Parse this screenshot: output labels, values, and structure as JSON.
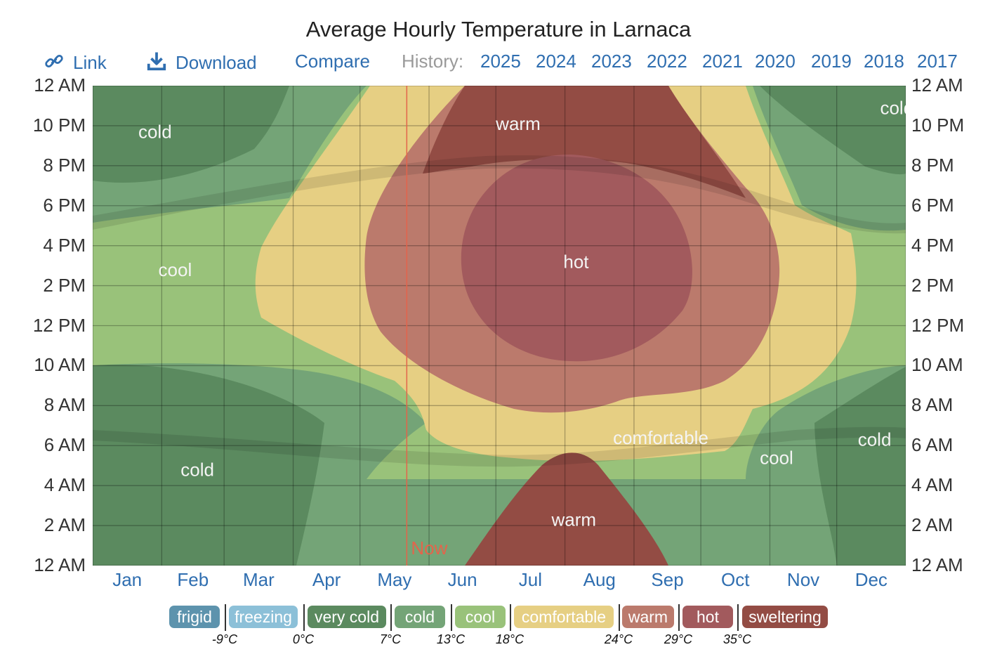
{
  "title": "Average Hourly Temperature in Larnaca",
  "toolbar": {
    "link_label": "Link",
    "download_label": "Download",
    "compare_label": "Compare",
    "history_label": "History:",
    "years": [
      "2025",
      "2024",
      "2023",
      "2022",
      "2021",
      "2020",
      "2019",
      "2018",
      "2017"
    ]
  },
  "colors": {
    "frigid": "#5d93ad",
    "freezing": "#8cc0d8",
    "very_cold": "#5b8a5f",
    "cold": "#74a477",
    "cool": "#99c27a",
    "comfortable": "#e6cf83",
    "warm": "#bb7a6c",
    "hot": "#a25a5d",
    "sweltering": "#934c44",
    "now_marker": "#e4644b"
  },
  "now_label": "Now",
  "chart_data": {
    "type": "heatmap",
    "title": "Average Hourly Temperature in Larnaca",
    "x_axis": {
      "categories": [
        "Jan",
        "Feb",
        "Mar",
        "Apr",
        "May",
        "Jun",
        "Jul",
        "Aug",
        "Sep",
        "Oct",
        "Nov",
        "Dec"
      ],
      "range_days": [
        0,
        365
      ]
    },
    "y_axis": {
      "tick_labels": [
        "12 AM",
        "10 PM",
        "8 PM",
        "6 PM",
        "4 PM",
        "2 PM",
        "12 PM",
        "10 AM",
        "8 AM",
        "6 AM",
        "4 AM",
        "2 AM",
        "12 AM"
      ],
      "range_hours": [
        0,
        24
      ]
    },
    "grid": true,
    "now_marker": {
      "label": "Now",
      "day_of_year": 141
    },
    "bands": [
      {
        "name": "frigid",
        "upper_c": -9
      },
      {
        "name": "freezing",
        "lower_c": -9,
        "upper_c": 0
      },
      {
        "name": "very cold",
        "lower_c": 0,
        "upper_c": 7
      },
      {
        "name": "cold",
        "lower_c": 7,
        "upper_c": 13
      },
      {
        "name": "cool",
        "lower_c": 13,
        "upper_c": 18
      },
      {
        "name": "comfortable",
        "lower_c": 18,
        "upper_c": 24
      },
      {
        "name": "warm",
        "lower_c": 24,
        "upper_c": 29
      },
      {
        "name": "hot",
        "lower_c": 29,
        "upper_c": 35
      },
      {
        "name": "sweltering",
        "lower_c": 35
      }
    ],
    "region_labels": [
      {
        "text": "cold",
        "day": 28,
        "hour": 21.7
      },
      {
        "text": "cold",
        "day": 361,
        "hour": 22.9
      },
      {
        "text": "warm",
        "day": 191,
        "hour": 22.1
      },
      {
        "text": "cool",
        "day": 37,
        "hour": 14.8
      },
      {
        "text": "hot",
        "day": 217,
        "hour": 15.2
      },
      {
        "text": "comfortable",
        "day": 255,
        "hour": 6.4
      },
      {
        "text": "cool",
        "day": 307,
        "hour": 5.4
      },
      {
        "text": "cold",
        "day": 351,
        "hour": 6.3
      },
      {
        "text": "cold",
        "day": 47,
        "hour": 4.8
      },
      {
        "text": "warm",
        "day": 216,
        "hour": 2.3
      }
    ],
    "legend": {
      "labels": [
        "frigid",
        "freezing",
        "very cold",
        "cold",
        "cool",
        "comfortable",
        "warm",
        "hot",
        "sweltering"
      ],
      "thresholds": [
        "-9°C",
        "0°C",
        "7°C",
        "13°C",
        "18°C",
        "24°C",
        "29°C",
        "35°C"
      ]
    }
  }
}
